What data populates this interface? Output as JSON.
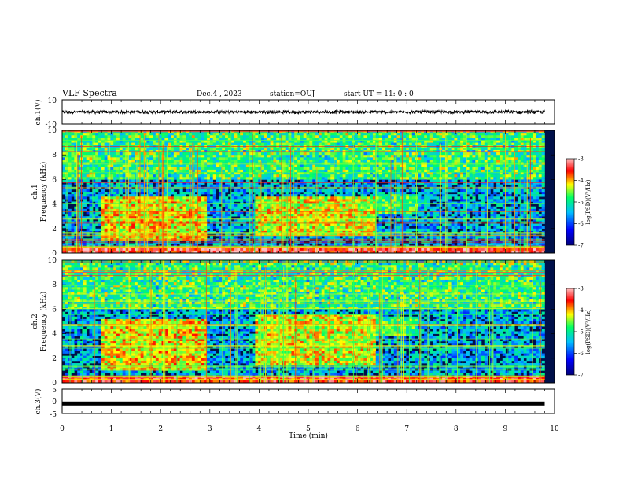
{
  "header": {
    "title": "VLF Spectra",
    "date": "Dec.4 , 2023",
    "station": "station=OUJ",
    "start": "start UT =  11: 0 : 0"
  },
  "colors": {
    "spectrogram_background": "#00104a",
    "colormap": [
      "#00007a",
      "#0000ff",
      "#00bfff",
      "#00ff66",
      "#ffff00",
      "#ff0000",
      "#ffc0c0"
    ],
    "waveform": "#000000"
  },
  "chart_data": [
    {
      "type": "line",
      "panel": "ch1-waveform",
      "ylabel": "ch.1(V)",
      "ylim": [
        -10,
        10
      ],
      "yticks": [
        "10",
        "-10"
      ],
      "xlim": [
        0,
        10
      ],
      "description_values": {
        "mean": 0,
        "approx_amplitude": 1.2
      }
    },
    {
      "type": "heatmap",
      "panel": "ch1-spectrogram",
      "ylabel": "ch.1 Frequency (kHz)",
      "ylim": [
        0,
        10
      ],
      "yticks": [
        "0",
        "2",
        "4",
        "6",
        "8",
        "10"
      ],
      "xlim": [
        0,
        9.8
      ],
      "colorbar": {
        "label": "log(PSD)(V²/Hz)",
        "range": [
          -7,
          -3
        ],
        "ticks": [
          "-3",
          "-4",
          "-5",
          "-6",
          "-7"
        ]
      },
      "bands": [
        {
          "t": [
            0.8,
            2.95
          ],
          "f": [
            1.0,
            4.6
          ],
          "level": -4.3
        },
        {
          "t": [
            3.95,
            6.4
          ],
          "f": [
            1.4,
            4.6
          ],
          "level": -4.4
        },
        {
          "t": [
            6.4,
            7.2
          ],
          "f": [
            3.3,
            4.8
          ],
          "level": -5.0
        },
        {
          "t": [
            0,
            9.8
          ],
          "f": [
            0,
            0.6
          ],
          "level": -3.4
        }
      ]
    },
    {
      "type": "heatmap",
      "panel": "ch2-spectrogram",
      "ylabel": "ch.2 Frequency (kHz)",
      "ylim": [
        0,
        10
      ],
      "yticks": [
        "0",
        "2",
        "4",
        "6",
        "8",
        "10"
      ],
      "xlim": [
        0,
        9.8
      ],
      "colorbar": {
        "label": "log(PSD)(V²/Hz)",
        "range": [
          -7,
          -3
        ],
        "ticks": [
          "-3",
          "-4",
          "-5",
          "-6",
          "-7"
        ]
      },
      "bands": [
        {
          "t": [
            0.8,
            2.95
          ],
          "f": [
            1.0,
            5.3
          ],
          "level": -4.3
        },
        {
          "t": [
            3.95,
            6.4
          ],
          "f": [
            1.4,
            5.5
          ],
          "level": -4.4
        },
        {
          "t": [
            6.4,
            7.2
          ],
          "f": [
            3.8,
            5.4
          ],
          "level": -5.0
        },
        {
          "t": [
            0,
            9.8
          ],
          "f": [
            0,
            0.5
          ],
          "level": -3.6
        }
      ]
    },
    {
      "type": "line",
      "panel": "ch3-waveform",
      "ylabel": "ch.3(V)",
      "ylim": [
        -5,
        5
      ],
      "yticks": [
        "5",
        "0",
        "-5"
      ],
      "xlim": [
        0,
        10
      ],
      "description_values": {
        "constant_level": -0.9
      }
    }
  ],
  "xaxis": {
    "label": "Time (min)",
    "ticks": [
      "0",
      "1",
      "2",
      "3",
      "4",
      "5",
      "6",
      "7",
      "8",
      "9",
      "10"
    ]
  }
}
